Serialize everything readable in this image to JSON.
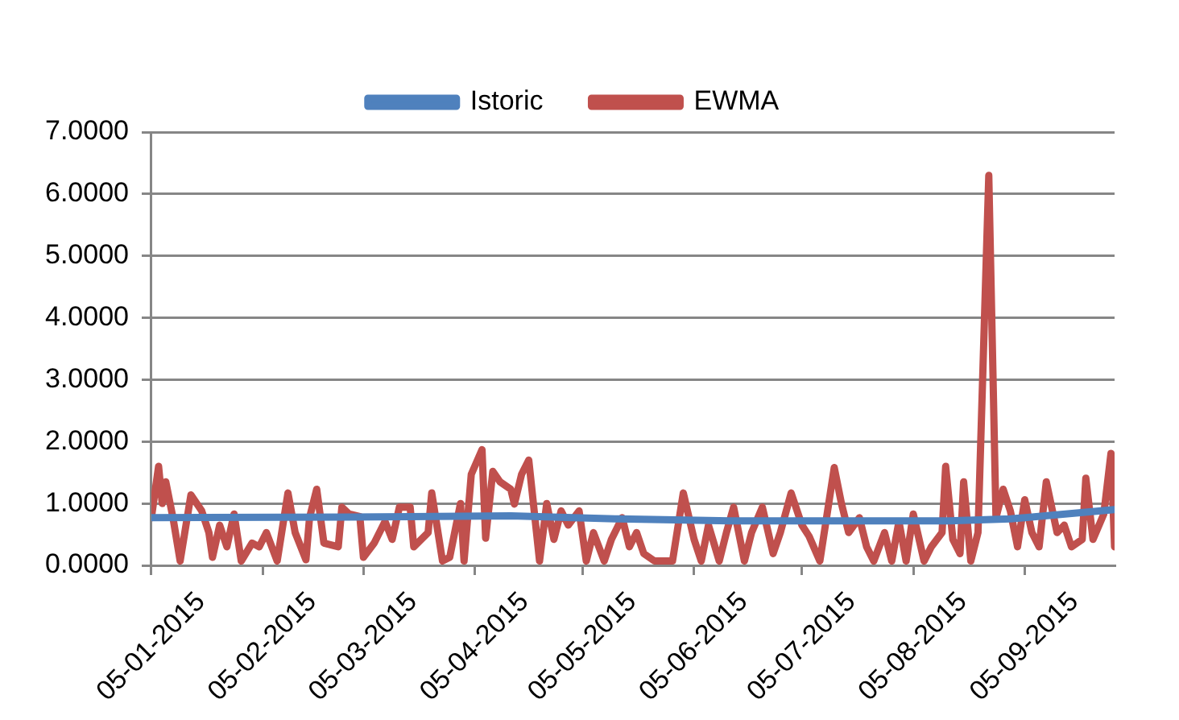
{
  "chart_data": {
    "type": "line",
    "legend": "top",
    "grid": "y",
    "marker": "none",
    "line_style": "solid",
    "xlim": [
      "2015-01-05",
      "2015-09-30"
    ],
    "xticks": [
      {
        "value": "2015-01-05",
        "label": "05-01-2015"
      },
      {
        "value": "2015-02-05",
        "label": "05-02-2015"
      },
      {
        "value": "2015-03-05",
        "label": "05-03-2015"
      },
      {
        "value": "2015-04-05",
        "label": "05-04-2015"
      },
      {
        "value": "2015-05-05",
        "label": "05-05-2015"
      },
      {
        "value": "2015-06-05",
        "label": "05-06-2015"
      },
      {
        "value": "2015-07-05",
        "label": "05-07-2015"
      },
      {
        "value": "2015-08-05",
        "label": "05-08-2015"
      },
      {
        "value": "2015-09-05",
        "label": "05-09-2015"
      }
    ],
    "ylim": [
      0,
      7
    ],
    "yticks": [
      {
        "value": 0,
        "label": "0.0000"
      },
      {
        "value": 1,
        "label": "1.0000"
      },
      {
        "value": 2,
        "label": "2.0000"
      },
      {
        "value": 3,
        "label": "3.0000"
      },
      {
        "value": 4,
        "label": "4.0000"
      },
      {
        "value": 5,
        "label": "5.0000"
      },
      {
        "value": 6,
        "label": "6.0000"
      },
      {
        "value": 7,
        "label": "7.0000"
      }
    ],
    "series": [
      {
        "name": "Istoric",
        "color": "#4f81bd",
        "x": [
          "2015-01-05",
          "2015-03-01",
          "2015-04-15",
          "2015-05-15",
          "2015-06-15",
          "2015-07-15",
          "2015-08-15",
          "2015-09-01",
          "2015-09-30"
        ],
        "values": [
          0.77,
          0.78,
          0.8,
          0.75,
          0.72,
          0.72,
          0.72,
          0.75,
          0.9
        ]
      },
      {
        "name": "EWMA",
        "color": "#c0504d",
        "x": [
          "2015-01-05",
          "2015-01-07",
          "2015-01-08",
          "2015-01-09",
          "2015-01-11",
          "2015-01-13",
          "2015-01-16",
          "2015-01-19",
          "2015-01-21",
          "2015-01-22",
          "2015-01-24",
          "2015-01-26",
          "2015-01-28",
          "2015-01-30",
          "2015-02-02",
          "2015-02-04",
          "2015-02-06",
          "2015-02-09",
          "2015-02-12",
          "2015-02-14",
          "2015-02-17",
          "2015-02-18",
          "2015-02-20",
          "2015-02-22",
          "2015-02-26",
          "2015-02-27",
          "2015-03-01",
          "2015-03-04",
          "2015-03-05",
          "2015-03-08",
          "2015-03-11",
          "2015-03-13",
          "2015-03-15",
          "2015-03-18",
          "2015-03-19",
          "2015-03-23",
          "2015-03-24",
          "2015-03-27",
          "2015-03-29",
          "2015-04-01",
          "2015-04-02",
          "2015-04-04",
          "2015-04-07",
          "2015-04-08",
          "2015-04-10",
          "2015-04-12",
          "2015-04-15",
          "2015-04-16",
          "2015-04-18",
          "2015-04-20",
          "2015-04-23",
          "2015-04-25",
          "2015-04-27",
          "2015-04-29",
          "2015-05-01",
          "2015-05-04",
          "2015-05-06",
          "2015-05-08",
          "2015-05-11",
          "2015-05-13",
          "2015-05-16",
          "2015-05-18",
          "2015-05-20",
          "2015-05-22",
          "2015-05-25",
          "2015-05-28",
          "2015-05-30",
          "2015-06-02",
          "2015-06-05",
          "2015-06-07",
          "2015-06-09",
          "2015-06-12",
          "2015-06-14",
          "2015-06-16",
          "2015-06-19",
          "2015-06-21",
          "2015-06-24",
          "2015-06-27",
          "2015-06-29",
          "2015-07-02",
          "2015-07-05",
          "2015-07-07",
          "2015-07-10",
          "2015-07-14",
          "2015-07-16",
          "2015-07-18",
          "2015-07-21",
          "2015-07-23",
          "2015-07-25",
          "2015-07-28",
          "2015-07-30",
          "2015-08-01",
          "2015-08-03",
          "2015-08-05",
          "2015-08-08",
          "2015-08-10",
          "2015-08-13",
          "2015-08-14",
          "2015-08-16",
          "2015-08-18",
          "2015-08-19",
          "2015-08-21",
          "2015-08-23",
          "2015-08-26",
          "2015-08-28",
          "2015-08-30",
          "2015-09-01",
          "2015-09-03",
          "2015-09-05",
          "2015-09-07",
          "2015-09-09",
          "2015-09-11",
          "2015-09-14",
          "2015-09-16",
          "2015-09-18",
          "2015-09-21",
          "2015-09-22",
          "2015-09-24",
          "2015-09-27",
          "2015-09-29",
          "2015-09-30"
        ],
        "values": [
          0.77,
          1.6,
          1.0,
          1.35,
          0.77,
          0.07,
          1.14,
          0.88,
          0.53,
          0.13,
          0.65,
          0.3,
          0.83,
          0.07,
          0.36,
          0.3,
          0.53,
          0.07,
          1.17,
          0.53,
          0.09,
          0.77,
          1.23,
          0.36,
          0.3,
          0.94,
          0.83,
          0.79,
          0.13,
          0.36,
          0.71,
          0.42,
          0.94,
          0.94,
          0.3,
          0.53,
          1.17,
          0.07,
          0.13,
          1.0,
          0.07,
          1.47,
          1.87,
          0.44,
          1.52,
          1.35,
          1.23,
          0.99,
          1.47,
          1.7,
          0.07,
          1.0,
          0.42,
          0.88,
          0.65,
          0.88,
          0.07,
          0.53,
          0.07,
          0.42,
          0.77,
          0.3,
          0.53,
          0.19,
          0.07,
          0.07,
          0.07,
          1.17,
          0.42,
          0.07,
          0.65,
          0.07,
          0.53,
          0.94,
          0.07,
          0.53,
          0.94,
          0.19,
          0.53,
          1.17,
          0.65,
          0.47,
          0.07,
          1.58,
          1.0,
          0.53,
          0.77,
          0.3,
          0.07,
          0.53,
          0.07,
          0.71,
          0.07,
          0.83,
          0.07,
          0.3,
          0.53,
          1.6,
          0.42,
          0.19,
          1.35,
          0.07,
          0.53,
          6.3,
          0.77,
          1.23,
          0.88,
          0.3,
          1.06,
          0.53,
          0.3,
          1.35,
          0.53,
          0.65,
          0.3,
          0.42,
          1.41,
          0.42,
          0.83,
          1.81,
          0.3
        ]
      }
    ]
  }
}
